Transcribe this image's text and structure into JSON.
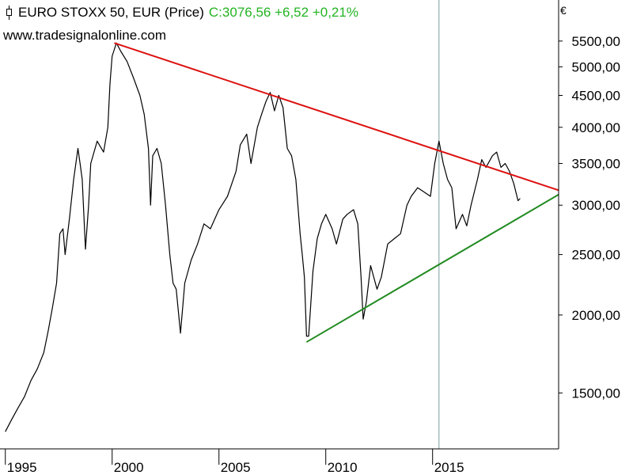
{
  "header": {
    "title": "EURO STOXX 50, EUR (Price)",
    "price": "C:3076,56 +6,52 +0,21%",
    "watermark": "www.tradesignalonline.com",
    "currency": "€"
  },
  "colors": {
    "price_line": "#000000",
    "resistance_line": "#dd1111",
    "support_line": "#228b22",
    "marker_line": "#7a9e9e",
    "positive_change": "#22b422",
    "axis": "#000000"
  },
  "chart_data": {
    "type": "line",
    "scale": "log",
    "title": "EURO STOXX 50, EUR (Price)",
    "xlabel": "",
    "ylabel": "",
    "xlim": [
      1994.75,
      2020.9
    ],
    "ylim": [
      1220,
      6400
    ],
    "x_ticks": [
      "1995",
      "2000",
      "2005",
      "2010",
      "2015"
    ],
    "y_ticks": [
      "5500,00",
      "5000,00",
      "4500,00",
      "4000,00",
      "3500,00",
      "3000,00",
      "2500,00",
      "2000,00",
      "1500,00"
    ],
    "grid": false,
    "series": [
      {
        "points": [
          [
            1995.0,
            1300
          ],
          [
            1995.3,
            1360
          ],
          [
            1995.6,
            1420
          ],
          [
            1995.9,
            1480
          ],
          [
            1996.2,
            1570
          ],
          [
            1996.5,
            1640
          ],
          [
            1996.8,
            1740
          ],
          [
            1997.0,
            1880
          ],
          [
            1997.2,
            2050
          ],
          [
            1997.4,
            2250
          ],
          [
            1997.55,
            2700
          ],
          [
            1997.7,
            2750
          ],
          [
            1997.8,
            2500
          ],
          [
            1998.0,
            2850
          ],
          [
            1998.2,
            3300
          ],
          [
            1998.4,
            3700
          ],
          [
            1998.5,
            3500
          ],
          [
            1998.6,
            3300
          ],
          [
            1998.75,
            2550
          ],
          [
            1998.9,
            3000
          ],
          [
            1999.0,
            3500
          ],
          [
            1999.3,
            3800
          ],
          [
            1999.6,
            3650
          ],
          [
            1999.8,
            4000
          ],
          [
            1999.9,
            4700
          ],
          [
            2000.0,
            5200
          ],
          [
            2000.2,
            5460
          ],
          [
            2000.4,
            5300
          ],
          [
            2000.7,
            5100
          ],
          [
            2001.0,
            4800
          ],
          [
            2001.3,
            4500
          ],
          [
            2001.5,
            4200
          ],
          [
            2001.7,
            3700
          ],
          [
            2001.8,
            3000
          ],
          [
            2001.9,
            3600
          ],
          [
            2002.1,
            3700
          ],
          [
            2002.3,
            3500
          ],
          [
            2002.5,
            3000
          ],
          [
            2002.7,
            2500
          ],
          [
            2002.85,
            2250
          ],
          [
            2003.0,
            2200
          ],
          [
            2003.2,
            1870
          ],
          [
            2003.4,
            2250
          ],
          [
            2003.7,
            2450
          ],
          [
            2004.0,
            2600
          ],
          [
            2004.3,
            2800
          ],
          [
            2004.6,
            2750
          ],
          [
            2005.0,
            2950
          ],
          [
            2005.4,
            3100
          ],
          [
            2005.8,
            3400
          ],
          [
            2006.0,
            3750
          ],
          [
            2006.3,
            3900
          ],
          [
            2006.5,
            3500
          ],
          [
            2006.8,
            4000
          ],
          [
            2007.0,
            4200
          ],
          [
            2007.2,
            4400
          ],
          [
            2007.4,
            4550
          ],
          [
            2007.6,
            4250
          ],
          [
            2007.8,
            4500
          ],
          [
            2008.0,
            4300
          ],
          [
            2008.2,
            3700
          ],
          [
            2008.4,
            3600
          ],
          [
            2008.6,
            3300
          ],
          [
            2008.8,
            2700
          ],
          [
            2008.9,
            2500
          ],
          [
            2009.0,
            2300
          ],
          [
            2009.1,
            1850
          ],
          [
            2009.2,
            1850
          ],
          [
            2009.4,
            2350
          ],
          [
            2009.6,
            2650
          ],
          [
            2009.8,
            2800
          ],
          [
            2010.0,
            2900
          ],
          [
            2010.3,
            2750
          ],
          [
            2010.5,
            2600
          ],
          [
            2010.8,
            2850
          ],
          [
            2011.0,
            2900
          ],
          [
            2011.3,
            2950
          ],
          [
            2011.5,
            2800
          ],
          [
            2011.65,
            2300
          ],
          [
            2011.75,
            1970
          ],
          [
            2011.9,
            2100
          ],
          [
            2012.1,
            2400
          ],
          [
            2012.4,
            2200
          ],
          [
            2012.6,
            2300
          ],
          [
            2012.9,
            2600
          ],
          [
            2013.2,
            2650
          ],
          [
            2013.5,
            2700
          ],
          [
            2013.8,
            3000
          ],
          [
            2014.0,
            3100
          ],
          [
            2014.3,
            3200
          ],
          [
            2014.6,
            3150
          ],
          [
            2014.9,
            3100
          ],
          [
            2015.1,
            3500
          ],
          [
            2015.3,
            3800
          ],
          [
            2015.5,
            3500
          ],
          [
            2015.7,
            3300
          ],
          [
            2015.9,
            3200
          ],
          [
            2016.1,
            2750
          ],
          [
            2016.4,
            2900
          ],
          [
            2016.6,
            2780
          ],
          [
            2016.8,
            3000
          ],
          [
            2017.1,
            3300
          ],
          [
            2017.3,
            3550
          ],
          [
            2017.5,
            3450
          ],
          [
            2017.8,
            3600
          ],
          [
            2018.0,
            3650
          ],
          [
            2018.2,
            3450
          ],
          [
            2018.4,
            3500
          ],
          [
            2018.6,
            3400
          ],
          [
            2018.8,
            3250
          ],
          [
            2019.0,
            3050
          ],
          [
            2019.1,
            3076.56
          ]
        ]
      }
    ],
    "trendlines": [
      {
        "from": [
          2000.1,
          5460
        ],
        "to": [
          2020.9,
          3170
        ]
      },
      {
        "from": [
          2009.1,
          1810
        ],
        "to": [
          2020.9,
          3120
        ]
      }
    ],
    "marker_x": 2015.3
  }
}
